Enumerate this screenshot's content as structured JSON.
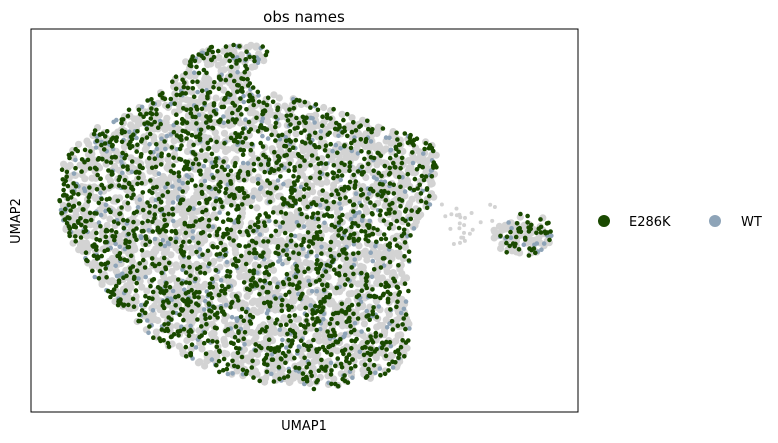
{
  "chart_data": {
    "type": "scatter",
    "title": "obs names",
    "xlabel": "UMAP1",
    "ylabel": "UMAP2",
    "xticks": [],
    "yticks": [],
    "grid": false,
    "legend_position": "right",
    "background_color": "#d3d3d3",
    "series": [
      {
        "name": "E286K",
        "color": "#1a4a00",
        "approx_points": 1900
      },
      {
        "name": "WT",
        "color": "#8ea4b8",
        "approx_points": 500
      }
    ]
  }
}
